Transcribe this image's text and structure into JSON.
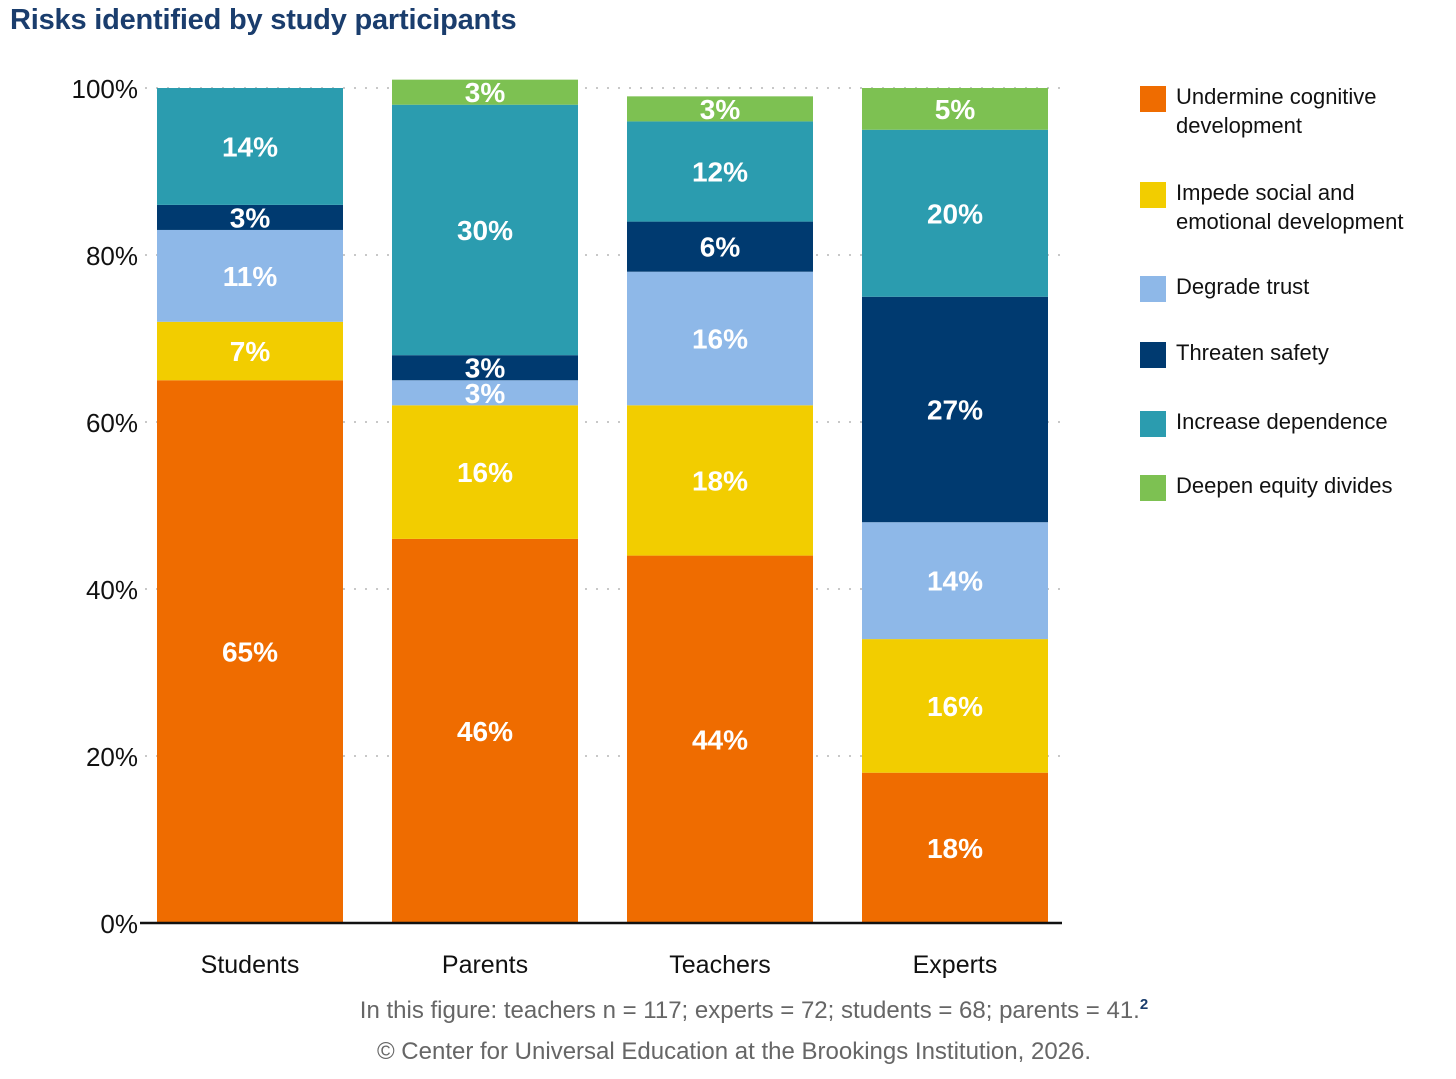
{
  "title": "Risks identified by study participants",
  "chart_data": {
    "type": "bar",
    "stacked": true,
    "categories": [
      "Students",
      "Parents",
      "Teachers",
      "Experts"
    ],
    "series": [
      {
        "name": "Undermine cognitive development",
        "color": "#ef6c00",
        "values": [
          65,
          46,
          44,
          18
        ],
        "labels": [
          "65%",
          "46%",
          "44%",
          "18%"
        ]
      },
      {
        "name": "Impede social and emotional development",
        "color": "#f2cd00",
        "values": [
          7,
          16,
          18,
          16
        ],
        "labels": [
          "7%",
          "16%",
          "18%",
          "16%"
        ]
      },
      {
        "name": "Degrade trust",
        "color": "#8eb8e8",
        "values": [
          11,
          3,
          16,
          14
        ],
        "labels": [
          "11%",
          "3%",
          "16%",
          "14%"
        ]
      },
      {
        "name": "Threaten safety",
        "color": "#003a70",
        "values": [
          3,
          3,
          6,
          27
        ],
        "labels": [
          "3%",
          "3%",
          "6%",
          "27%"
        ]
      },
      {
        "name": "Increase dependence",
        "color": "#2b9caf",
        "values": [
          14,
          30,
          12,
          20
        ],
        "labels": [
          "14%",
          "30%",
          "12%",
          "20%"
        ]
      },
      {
        "name": "Deepen equity divides",
        "color": "#7dc152",
        "values": [
          0,
          3,
          3,
          5
        ],
        "labels": [
          "",
          "3%",
          "3%",
          "5%"
        ]
      }
    ],
    "y_ticks": [
      "0%",
      "20%",
      "40%",
      "60%",
      "80%",
      "100%"
    ],
    "ylim": [
      0,
      100
    ],
    "xlabel": "",
    "ylabel": "",
    "legend_position": "right"
  },
  "legend": [
    {
      "label": "Undermine cognitive development",
      "color": "#ef6c00"
    },
    {
      "label": "Impede social and emotional development",
      "color": "#f2cd00"
    },
    {
      "label": "Degrade trust",
      "color": "#8eb8e8"
    },
    {
      "label": "Threaten safety",
      "color": "#003a70"
    },
    {
      "label": "Increase dependence",
      "color": "#2b9caf"
    },
    {
      "label": "Deepen equity divides",
      "color": "#7dc152"
    }
  ],
  "footnote": {
    "text": "In this figure: teachers n = 117; experts = 72; students = 68; parents = 41.",
    "ref": "2"
  },
  "copyright": "© Center for Universal Education at the Brookings Institution, 2026."
}
